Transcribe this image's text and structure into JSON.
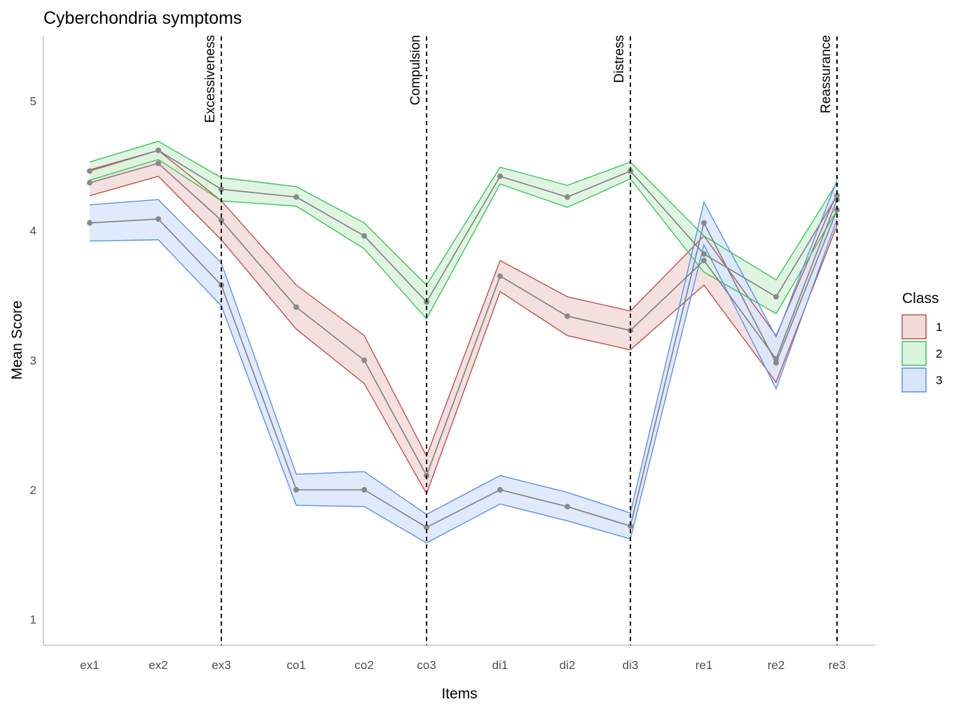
{
  "chart_data": {
    "type": "line",
    "title": "Cyberchondria symptoms",
    "xlabel": "Items",
    "ylabel": "Mean Score",
    "ylim": [
      0.8,
      5.5
    ],
    "yticks": [
      1,
      2,
      3,
      4,
      5
    ],
    "categories": [
      "ex1",
      "ex2",
      "ex3",
      "co1",
      "co2",
      "co3",
      "di1",
      "di2",
      "di3",
      "re1",
      "re2",
      "re3"
    ],
    "sections": [
      {
        "label": "Excessiveness",
        "at": "ex3"
      },
      {
        "label": "Compulsion",
        "at": "co3"
      },
      {
        "label": "Distress",
        "at": "di3"
      },
      {
        "label": "Reassurance",
        "at": "re3"
      }
    ],
    "legend": {
      "title": "Class",
      "position": "right"
    },
    "grid": false,
    "series": [
      {
        "name": "1",
        "color": "#c0504d",
        "fill": "#f2dcd9",
        "values": [
          4.37,
          4.52,
          4.08,
          3.41,
          3.0,
          2.11,
          3.65,
          3.34,
          3.23,
          3.77,
          3.01,
          4.24
        ],
        "lower": [
          4.27,
          4.42,
          3.93,
          3.24,
          2.82,
          1.97,
          3.53,
          3.19,
          3.08,
          3.58,
          2.83,
          4.04
        ],
        "upper": [
          4.47,
          4.62,
          4.23,
          3.58,
          3.19,
          2.26,
          3.77,
          3.49,
          3.38,
          3.96,
          3.19,
          4.29
        ]
      },
      {
        "name": "2",
        "color": "#3cc45a",
        "fill": "#d9f3dc",
        "values": [
          4.46,
          4.62,
          4.32,
          4.26,
          3.96,
          3.45,
          4.42,
          4.26,
          4.46,
          3.82,
          3.49,
          4.27
        ],
        "lower": [
          4.39,
          4.55,
          4.23,
          4.19,
          3.86,
          3.32,
          4.36,
          4.18,
          4.4,
          3.68,
          3.36,
          4.16
        ],
        "upper": [
          4.53,
          4.69,
          4.41,
          4.34,
          4.06,
          3.58,
          4.49,
          4.35,
          4.53,
          3.96,
          3.62,
          4.37
        ]
      },
      {
        "name": "3",
        "color": "#5b8ff0",
        "fill": "#d9e6fb",
        "values": [
          4.06,
          4.09,
          3.58,
          2.0,
          2.0,
          1.71,
          2.0,
          1.87,
          1.72,
          4.06,
          2.98,
          4.16
        ],
        "lower": [
          3.92,
          3.93,
          3.42,
          1.88,
          1.87,
          1.59,
          1.89,
          1.76,
          1.62,
          3.89,
          2.78,
          4.09
        ],
        "upper": [
          4.2,
          4.24,
          3.75,
          2.12,
          2.14,
          1.81,
          2.11,
          1.98,
          1.82,
          4.22,
          3.18,
          4.39
        ]
      }
    ]
  }
}
